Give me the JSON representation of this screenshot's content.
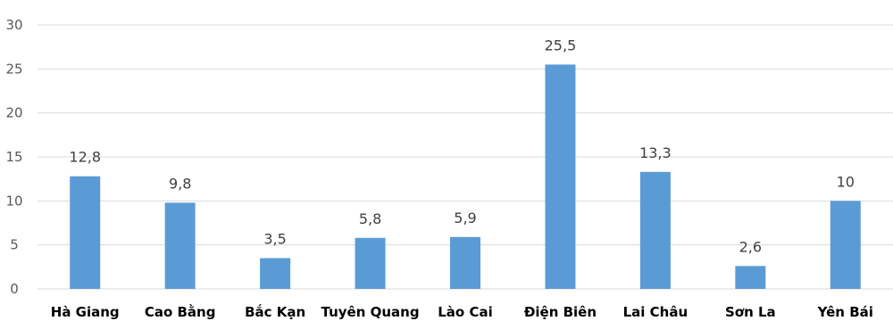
{
  "chart_data": {
    "type": "bar",
    "categories": [
      "Hà Giang",
      "Cao Bằng",
      "Bắc Kạn",
      "Tuyên Quang",
      "Lào Cai",
      "Điện Biên",
      "Lai Châu",
      "Sơn La",
      "Yên Bái"
    ],
    "values": [
      12.8,
      9.8,
      3.5,
      5.8,
      5.9,
      25.5,
      13.3,
      2.6,
      10
    ],
    "data_labels": [
      "12,8",
      "9,8",
      "3,5",
      "5,8",
      "5,9",
      "25,5",
      "13,3",
      "2,6",
      "10"
    ],
    "y_ticks": [
      "0",
      "5",
      "10",
      "15",
      "20",
      "25",
      "30"
    ],
    "ylim": [
      0,
      30
    ],
    "grid": true,
    "legend": "none",
    "bar_color": "#5b9bd5"
  }
}
